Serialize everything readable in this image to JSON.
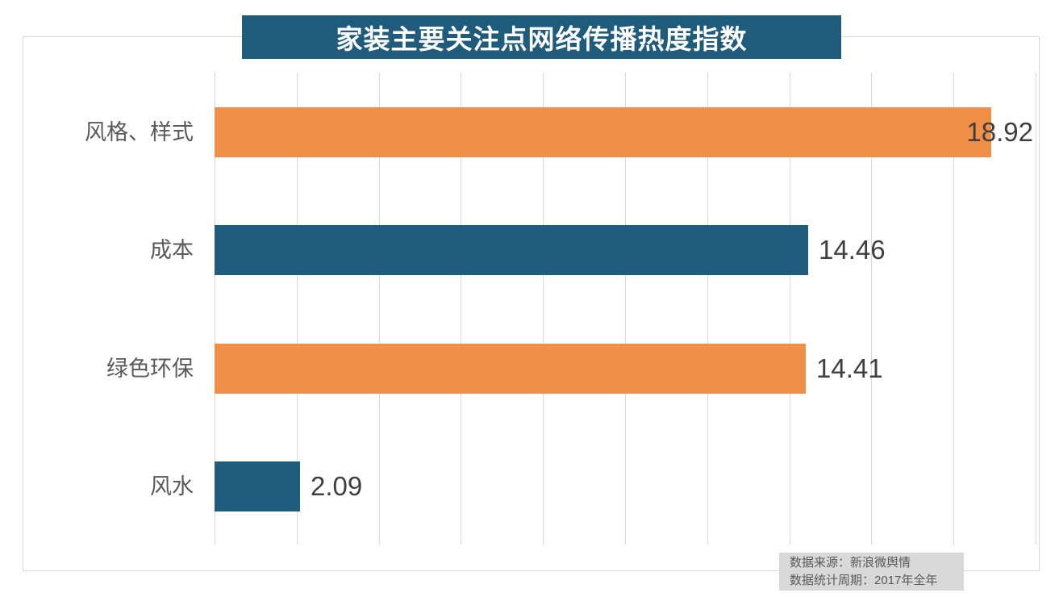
{
  "title": {
    "text": "家装主要关注点网络传播热度指数",
    "bg_color": "#1F5C7B",
    "text_color": "#FFFFFF"
  },
  "chart_data": {
    "type": "bar",
    "orientation": "horizontal",
    "title": "家装主要关注点网络传播热度指数",
    "categories": [
      "风格、样式",
      "成本",
      "绿色环保",
      "风水"
    ],
    "values": [
      18.92,
      14.46,
      14.41,
      2.09
    ],
    "bar_colors": [
      "#EF8F48",
      "#1F5C7D",
      "#EF8F48",
      "#1F5C7D"
    ],
    "data_labels": [
      "18.92",
      "14.46",
      "14.41",
      "2.09"
    ],
    "xlim": [
      0,
      20
    ],
    "grid_step": 2,
    "grid": true,
    "grid_color": "#D9D9D9",
    "legend": "none",
    "xlabel": "",
    "ylabel": ""
  },
  "source_note": {
    "line1": "数据来源：新浪微舆情",
    "line2": "数据统计周期：2017年全年"
  },
  "colors": {
    "accent_orange": "#EF8F48",
    "accent_teal": "#1F5C7D",
    "category_label": "#595959",
    "value_label": "#3F3F3F",
    "frame_border": "#D9D9D9",
    "source_bg": "#D9D9D9"
  }
}
